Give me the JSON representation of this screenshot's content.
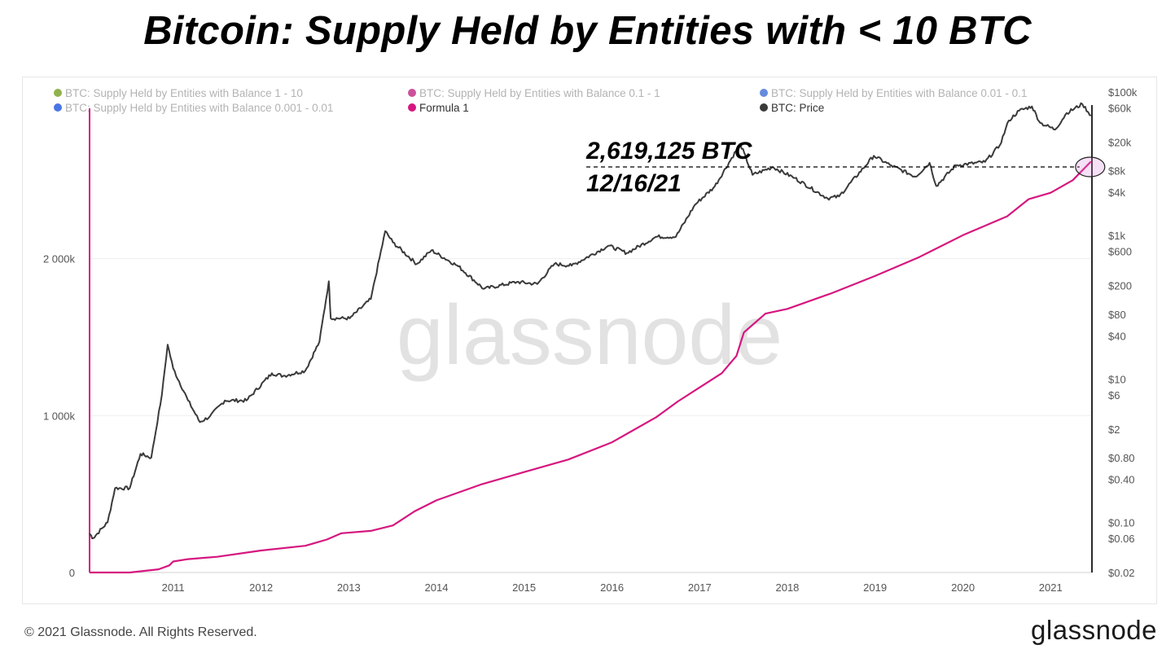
{
  "title": "Bitcoin: Supply Held by Entities with < 10 BTC",
  "footer": {
    "copyright": "© 2021 Glassnode. All Rights Reserved.",
    "logo_text": "glassnode"
  },
  "watermark": "glassnode",
  "colors": {
    "supply": "#d6167f",
    "price": "#3a3a3a",
    "grid": "#efefef",
    "axis_text": "#555555",
    "legend_faded": "#b3b3b3",
    "legend_active": "#333333"
  },
  "legend": [
    {
      "label": "BTC: Supply Held by Entities with Balance 1 - 10",
      "color": "#7fa52e",
      "active": false
    },
    {
      "label": "BTC: Supply Held by Entities with Balance 0.1 - 1",
      "color": "#c2338a",
      "active": false
    },
    {
      "label": "BTC: Supply Held by Entities with Balance 0.01 - 0.1",
      "color": "#4a78d6",
      "active": false
    },
    {
      "label": "BTC: Supply Held by Entities with Balance 0.001 - 0.01",
      "color": "#2a5ee0",
      "active": false
    },
    {
      "label": "Formula 1",
      "color": "#d6167f",
      "active": true
    },
    {
      "label": "BTC: Price",
      "color": "#3a3a3a",
      "active": true
    }
  ],
  "annotation": {
    "value_label": "2,619,125 BTC",
    "date_label": "12/16/21"
  },
  "chart_data": {
    "type": "line",
    "x_ticks": [
      "2011",
      "2012",
      "2013",
      "2014",
      "2015",
      "2016",
      "2017",
      "2018",
      "2019",
      "2020",
      "2021"
    ],
    "y_left": {
      "ticks": [
        0,
        1000000,
        2000000
      ],
      "tick_labels": [
        "0",
        "1 000k",
        "2 000k"
      ],
      "range": [
        0,
        3000000
      ]
    },
    "y_right": {
      "scale": "log",
      "tick_labels": [
        "$100k",
        "$60k",
        "$20k",
        "$8k",
        "$4k",
        "$1k",
        "$600",
        "$200",
        "$80",
        "$40",
        "$10",
        "$6",
        "$2",
        "$0.80",
        "$0.40",
        "$0.10",
        "$0.06",
        "$0.02"
      ],
      "tick_values": [
        100000,
        60000,
        20000,
        8000,
        4000,
        1000,
        600,
        200,
        80,
        40,
        10,
        6,
        2,
        0.8,
        0.4,
        0.1,
        0.06,
        0.02
      ],
      "range": [
        0.02,
        100000
      ]
    },
    "series": [
      {
        "name": "Formula 1",
        "axis": "left",
        "x": [
          "2010-07-18",
          "2011-01-01",
          "2011-05-01",
          "2011-06-15",
          "2011-07-01",
          "2011-09-01",
          "2012-01-01",
          "2012-07-01",
          "2013-01-01",
          "2013-04-01",
          "2013-06-01",
          "2013-10-01",
          "2014-01-01",
          "2014-04-01",
          "2014-07-01",
          "2015-01-01",
          "2015-07-01",
          "2016-01-01",
          "2016-07-01",
          "2017-01-01",
          "2017-04-01",
          "2017-07-01",
          "2017-10-01",
          "2017-12-01",
          "2018-01-01",
          "2018-04-01",
          "2018-07-01",
          "2019-01-01",
          "2019-07-01",
          "2020-01-01",
          "2020-07-01",
          "2021-01-01",
          "2021-04-01",
          "2021-07-01",
          "2021-10-01",
          "2021-12-16"
        ],
        "values": [
          0,
          0,
          20000,
          45000,
          70000,
          85000,
          100000,
          140000,
          170000,
          210000,
          250000,
          265000,
          300000,
          390000,
          460000,
          560000,
          640000,
          720000,
          830000,
          990000,
          1090000,
          1180000,
          1270000,
          1380000,
          1530000,
          1650000,
          1680000,
          1780000,
          1890000,
          2010000,
          2150000,
          2270000,
          2380000,
          2420000,
          2500000,
          2619125
        ]
      },
      {
        "name": "BTC: Price",
        "axis": "right",
        "x": [
          "2010-07-18",
          "2010-08-01",
          "2010-10-01",
          "2010-11-01",
          "2011-01-01",
          "2011-02-15",
          "2011-04-01",
          "2011-05-15",
          "2011-06-08",
          "2011-07-01",
          "2011-09-01",
          "2011-10-20",
          "2011-12-01",
          "2012-02-01",
          "2012-05-01",
          "2012-08-15",
          "2012-10-01",
          "2013-01-01",
          "2013-03-01",
          "2013-04-09",
          "2013-04-17",
          "2013-07-05",
          "2013-10-01",
          "2013-11-30",
          "2014-01-01",
          "2014-04-10",
          "2014-06-10",
          "2014-10-01",
          "2015-01-14",
          "2015-06-01",
          "2015-08-25",
          "2015-11-04",
          "2016-01-15",
          "2016-06-16",
          "2016-09-01",
          "2017-01-01",
          "2017-03-24",
          "2017-06-12",
          "2017-09-01",
          "2017-12-17",
          "2018-02-06",
          "2018-05-01",
          "2018-08-01",
          "2018-12-15",
          "2019-02-01",
          "2019-06-26",
          "2019-09-01",
          "2019-12-17",
          "2020-02-13",
          "2020-03-12",
          "2020-06-01",
          "2020-10-01",
          "2020-12-01",
          "2021-01-08",
          "2021-02-20",
          "2021-04-14",
          "2021-05-19",
          "2021-07-20",
          "2021-09-06",
          "2021-11-10",
          "2021-12-16"
        ],
        "values": [
          0.07,
          0.06,
          0.1,
          0.3,
          0.3,
          0.9,
          0.8,
          6,
          30,
          14,
          5,
          2.5,
          3,
          5,
          5,
          12,
          11,
          13,
          33,
          230,
          70,
          70,
          130,
          1150,
          800,
          400,
          620,
          370,
          180,
          225,
          210,
          400,
          380,
          720,
          570,
          960,
          960,
          2700,
          4800,
          19000,
          7000,
          9000,
          6300,
          3300,
          3500,
          12900,
          9600,
          6600,
          10300,
          4900,
          9500,
          10600,
          18000,
          40000,
          55000,
          63000,
          37000,
          30000,
          51000,
          68000,
          47000
        ]
      }
    ]
  }
}
